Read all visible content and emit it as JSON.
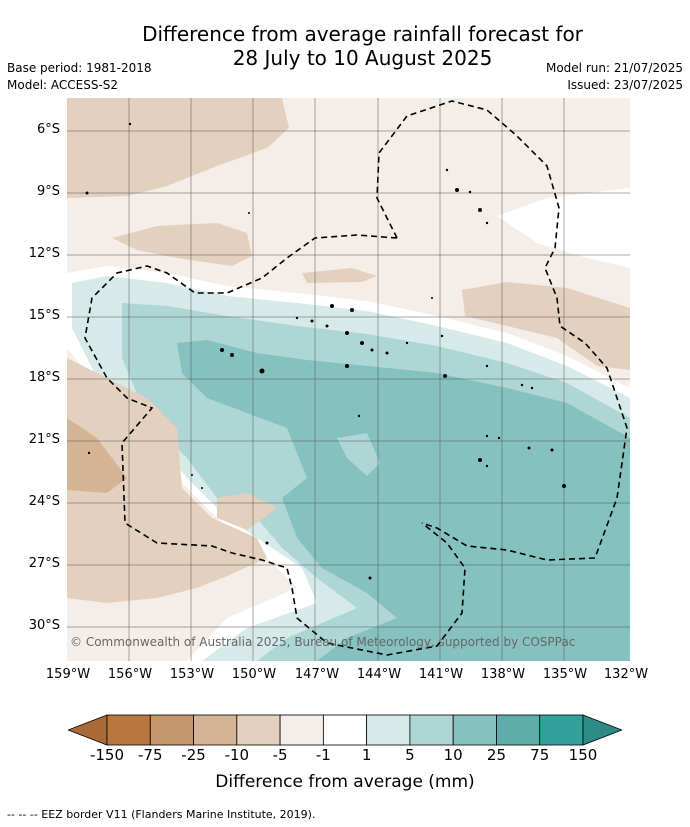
{
  "title_line1": "Difference from average rainfall forecast for",
  "title_line2": "28 July to 10 August 2025",
  "base_period": "Base period: 1981-2018",
  "model": "Model: ACCESS-S2",
  "model_run": "Model run: 21/07/2025",
  "issued": "Issued: 23/07/2025",
  "copyright": "© Commonwealth of Australia 2025, Bureau of Meteorology, supported by COSPPac",
  "lat_labels": [
    "6°S",
    "9°S",
    "12°S",
    "15°S",
    "18°S",
    "21°S",
    "24°S",
    "27°S",
    "30°S"
  ],
  "lon_labels": [
    "159°W",
    "156°W",
    "153°W",
    "150°W",
    "147°W",
    "144°W",
    "141°W",
    "138°W",
    "135°W",
    "132°W"
  ],
  "colorbar": {
    "ticks": [
      "-150",
      "-75",
      "-25",
      "-10",
      "-5",
      "-1",
      "1",
      "5",
      "10",
      "25",
      "75",
      "150"
    ],
    "colors": [
      "#a76a38",
      "#b8773f",
      "#c5966b",
      "#d5b495",
      "#e4d0be",
      "#f5ede7",
      "#ffffff",
      "#d6eae9",
      "#aed6d4",
      "#85c1bf",
      "#5fadab",
      "#34a09b",
      "#2d8a85"
    ],
    "label": "Difference from average (mm)"
  },
  "footer": "-- -- -- EEZ border V11 (Flanders Marine Institute, 2019)."
}
